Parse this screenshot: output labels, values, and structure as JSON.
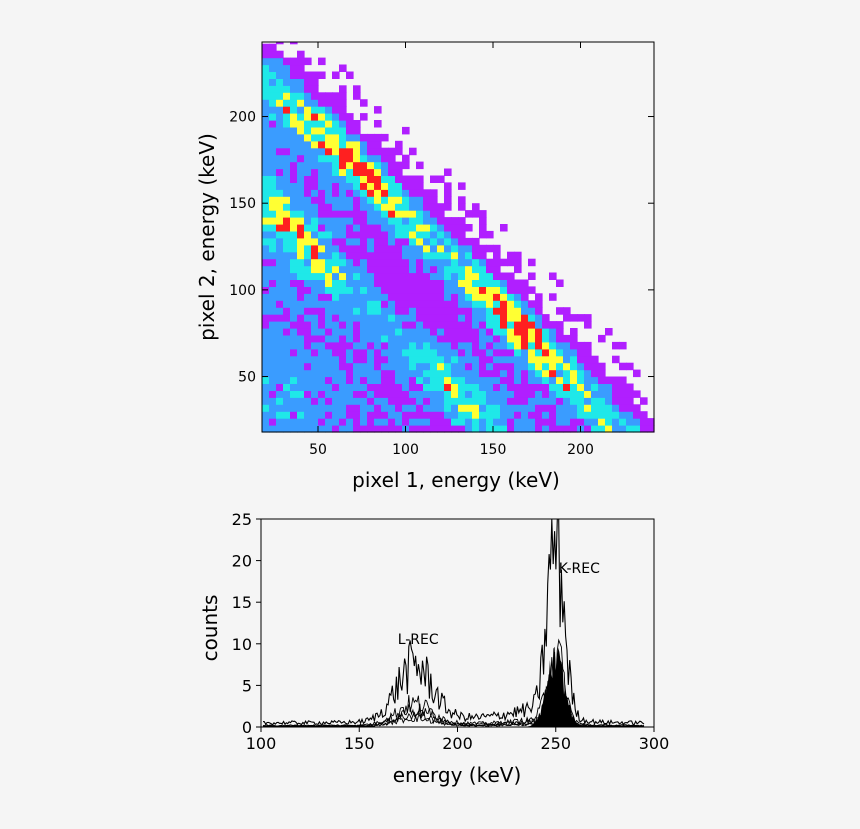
{
  "chart_data": [
    {
      "type": "heatmap",
      "xlabel": "pixel 1, energy (keV)",
      "ylabel": "pixel 2, energy (keV)",
      "xlim": [
        18,
        242
      ],
      "ylim": [
        18,
        243
      ],
      "xticks": [
        50,
        100,
        150,
        200
      ],
      "yticks": [
        50,
        100,
        150,
        200
      ],
      "colorscale": [
        "#b01fff",
        "#3a9cff",
        "#1fe8e8",
        "#ffff33",
        "#ff2020"
      ],
      "features": [
        {
          "kind": "diagonal_band",
          "sum_keV": 245,
          "peaks_x": [
            75,
            165
          ]
        },
        {
          "kind": "diagonal_band",
          "sum_keV": 170,
          "peaks_x": [
            38,
            130
          ]
        },
        {
          "kind": "anti_diagonal_strip",
          "sum_keV": 255
        }
      ]
    },
    {
      "type": "line",
      "xlabel": "energy (keV)",
      "ylabel": "counts",
      "xlim": [
        100,
        300
      ],
      "ylim": [
        0,
        25
      ],
      "xticks": [
        100,
        150,
        200,
        250,
        300
      ],
      "yticks": [
        0,
        5,
        10,
        15,
        20,
        25
      ],
      "annotations": [
        {
          "text": "L-REC",
          "x": 180,
          "y": 10
        },
        {
          "text": "K-REC",
          "x": 262,
          "y": 18.5
        }
      ],
      "peaks": [
        {
          "center_keV": 178,
          "max_counts": 8.2
        },
        {
          "center_keV": 250,
          "max_counts": 24
        }
      ]
    }
  ]
}
